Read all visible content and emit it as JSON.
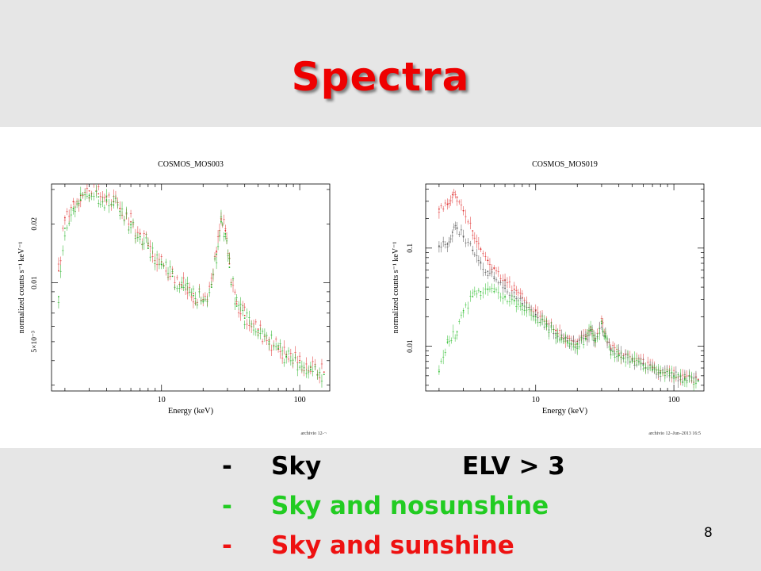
{
  "slide": {
    "title": "Spectra",
    "page_number": "8",
    "title_color": "#ee0000"
  },
  "legend_items": [
    {
      "dash": "-",
      "label": "Sky",
      "extra": "ELV > 3",
      "color": "#000000"
    },
    {
      "dash": "-",
      "label": "Sky and nosunshine",
      "extra": "",
      "color": "#22cc22"
    },
    {
      "dash": "-",
      "label": "Sky and sunshine",
      "extra": "",
      "color": "#ee1111"
    }
  ],
  "chart_data": [
    {
      "type": "scatter",
      "title": "COSMOS_MOS003",
      "xlabel": "Energy (keV)",
      "ylabel": "normalized counts s⁻¹ keV⁻¹",
      "xscale": "log",
      "yscale": "log",
      "xlim": [
        1.6,
        165
      ],
      "ylim": [
        0.0028,
        0.032
      ],
      "xticks": [
        {
          "value": 10,
          "label": "10"
        },
        {
          "value": 100,
          "label": "100"
        }
      ],
      "yticks": [
        {
          "value": 0.005,
          "label": "5×10⁻³"
        },
        {
          "value": 0.01,
          "label": "0.01"
        },
        {
          "value": 0.02,
          "label": "0.02"
        }
      ],
      "footer": "archivio 12-¬",
      "series": [
        {
          "color": "#e03030",
          "points": [
            [
              1.8,
              0.0115
            ],
            [
              2.0,
              0.0215
            ],
            [
              2.3,
              0.026
            ],
            [
              2.6,
              0.028
            ],
            [
              3.0,
              0.0295
            ],
            [
              3.5,
              0.0285
            ],
            [
              4.0,
              0.0275
            ],
            [
              4.5,
              0.026
            ],
            [
              5.0,
              0.024
            ],
            [
              6.0,
              0.0205
            ],
            [
              7.0,
              0.0178
            ],
            [
              8.0,
              0.0155
            ],
            [
              10,
              0.0128
            ],
            [
              12,
              0.0112
            ],
            [
              14,
              0.0098
            ],
            [
              17,
              0.0088
            ],
            [
              20,
              0.0082
            ],
            [
              23,
              0.0098
            ],
            [
              25,
              0.0145
            ],
            [
              27,
              0.021
            ],
            [
              29,
              0.0185
            ],
            [
              31,
              0.0125
            ],
            [
              35,
              0.0078
            ],
            [
              40,
              0.0068
            ],
            [
              50,
              0.0058
            ],
            [
              60,
              0.0051
            ],
            [
              70,
              0.0047
            ],
            [
              80,
              0.0043
            ],
            [
              100,
              0.004
            ],
            [
              120,
              0.0037
            ],
            [
              150,
              0.0035
            ]
          ]
        },
        {
          "color": "#20b020",
          "points": [
            [
              1.8,
              0.0085
            ],
            [
              2.0,
              0.019
            ],
            [
              2.3,
              0.024
            ],
            [
              2.6,
              0.0265
            ],
            [
              3.0,
              0.028
            ],
            [
              3.5,
              0.0275
            ],
            [
              4.0,
              0.0265
            ],
            [
              4.5,
              0.025
            ],
            [
              5.0,
              0.0232
            ],
            [
              6.0,
              0.0198
            ],
            [
              7.0,
              0.0172
            ],
            [
              8.0,
              0.015
            ],
            [
              10,
              0.0124
            ],
            [
              12,
              0.0108
            ],
            [
              14,
              0.0095
            ],
            [
              17,
              0.0086
            ],
            [
              20,
              0.008
            ],
            [
              23,
              0.0095
            ],
            [
              25,
              0.014
            ],
            [
              27,
              0.0205
            ],
            [
              29,
              0.0178
            ],
            [
              31,
              0.012
            ],
            [
              35,
              0.0076
            ],
            [
              40,
              0.0066
            ],
            [
              50,
              0.0057
            ],
            [
              60,
              0.005
            ],
            [
              70,
              0.0046
            ],
            [
              80,
              0.0042
            ],
            [
              100,
              0.0039
            ],
            [
              120,
              0.0036
            ],
            [
              150,
              0.0034
            ]
          ]
        }
      ]
    },
    {
      "type": "scatter",
      "title": "COSMOS_MOS019",
      "xlabel": "Energy (keV)",
      "ylabel": "normalized counts s⁻¹ keV⁻¹",
      "xscale": "log",
      "yscale": "log",
      "xlim": [
        1.6,
        165
      ],
      "ylim": [
        0.0035,
        0.45
      ],
      "xticks": [
        {
          "value": 10,
          "label": "10"
        },
        {
          "value": 100,
          "label": "100"
        }
      ],
      "yticks": [
        {
          "value": 0.01,
          "label": "0.01"
        },
        {
          "value": 0.1,
          "label": "0.1"
        }
      ],
      "footer": "archivio 12–Jun–2013 16:5",
      "series": [
        {
          "color": "#e03030",
          "points": [
            [
              2.0,
              0.25
            ],
            [
              2.3,
              0.28
            ],
            [
              2.5,
              0.35
            ],
            [
              2.7,
              0.33
            ],
            [
              3.0,
              0.24
            ],
            [
              3.5,
              0.15
            ],
            [
              4.0,
              0.098
            ],
            [
              4.5,
              0.075
            ],
            [
              5.0,
              0.062
            ],
            [
              6.0,
              0.047
            ],
            [
              7.0,
              0.038
            ],
            [
              8.0,
              0.031
            ],
            [
              10,
              0.023
            ],
            [
              12,
              0.018
            ],
            [
              14,
              0.0145
            ],
            [
              17,
              0.012
            ],
            [
              20,
              0.0112
            ],
            [
              23,
              0.0125
            ],
            [
              25,
              0.0155
            ],
            [
              27,
              0.012
            ],
            [
              30,
              0.018
            ],
            [
              32,
              0.013
            ],
            [
              35,
              0.0095
            ],
            [
              40,
              0.0085
            ],
            [
              50,
              0.0075
            ],
            [
              60,
              0.0067
            ],
            [
              70,
              0.006
            ],
            [
              80,
              0.0056
            ],
            [
              100,
              0.0052
            ],
            [
              120,
              0.0048
            ],
            [
              150,
              0.0046
            ]
          ]
        },
        {
          "color": "#555555",
          "points": [
            [
              2.0,
              0.105
            ],
            [
              2.3,
              0.11
            ],
            [
              2.5,
              0.145
            ],
            [
              2.7,
              0.16
            ],
            [
              3.0,
              0.13
            ],
            [
              3.5,
              0.095
            ],
            [
              4.0,
              0.072
            ],
            [
              4.5,
              0.058
            ],
            [
              5.0,
              0.049
            ],
            [
              6.0,
              0.039
            ],
            [
              7.0,
              0.032
            ],
            [
              8.0,
              0.027
            ],
            [
              10,
              0.021
            ],
            [
              12,
              0.0165
            ],
            [
              14,
              0.0135
            ],
            [
              17,
              0.0113
            ],
            [
              20,
              0.0106
            ],
            [
              23,
              0.012
            ],
            [
              25,
              0.0148
            ],
            [
              27,
              0.0115
            ],
            [
              30,
              0.0172
            ],
            [
              32,
              0.0125
            ],
            [
              35,
              0.0092
            ],
            [
              40,
              0.0082
            ],
            [
              50,
              0.0072
            ],
            [
              60,
              0.0065
            ],
            [
              70,
              0.0058
            ],
            [
              80,
              0.0054
            ],
            [
              100,
              0.005
            ],
            [
              120,
              0.0047
            ],
            [
              150,
              0.0045
            ]
          ]
        },
        {
          "color": "#30c030",
          "points": [
            [
              2.0,
              0.0055
            ],
            [
              2.3,
              0.011
            ],
            [
              2.7,
              0.014
            ],
            [
              3.0,
              0.023
            ],
            [
              3.5,
              0.032
            ],
            [
              4.0,
              0.036
            ],
            [
              4.5,
              0.038
            ],
            [
              5.0,
              0.036
            ],
            [
              6.0,
              0.032
            ],
            [
              7.0,
              0.029
            ],
            [
              8.0,
              0.026
            ],
            [
              10,
              0.02
            ],
            [
              12,
              0.016
            ],
            [
              14,
              0.013
            ],
            [
              17,
              0.011
            ],
            [
              20,
              0.0105
            ],
            [
              23,
              0.0118
            ],
            [
              25,
              0.0145
            ],
            [
              27,
              0.0112
            ],
            [
              30,
              0.017
            ],
            [
              32,
              0.0122
            ],
            [
              35,
              0.009
            ],
            [
              40,
              0.008
            ],
            [
              50,
              0.007
            ],
            [
              60,
              0.0064
            ],
            [
              70,
              0.0057
            ],
            [
              80,
              0.0053
            ],
            [
              100,
              0.0049
            ],
            [
              120,
              0.0046
            ],
            [
              150,
              0.0044
            ]
          ]
        }
      ]
    }
  ]
}
